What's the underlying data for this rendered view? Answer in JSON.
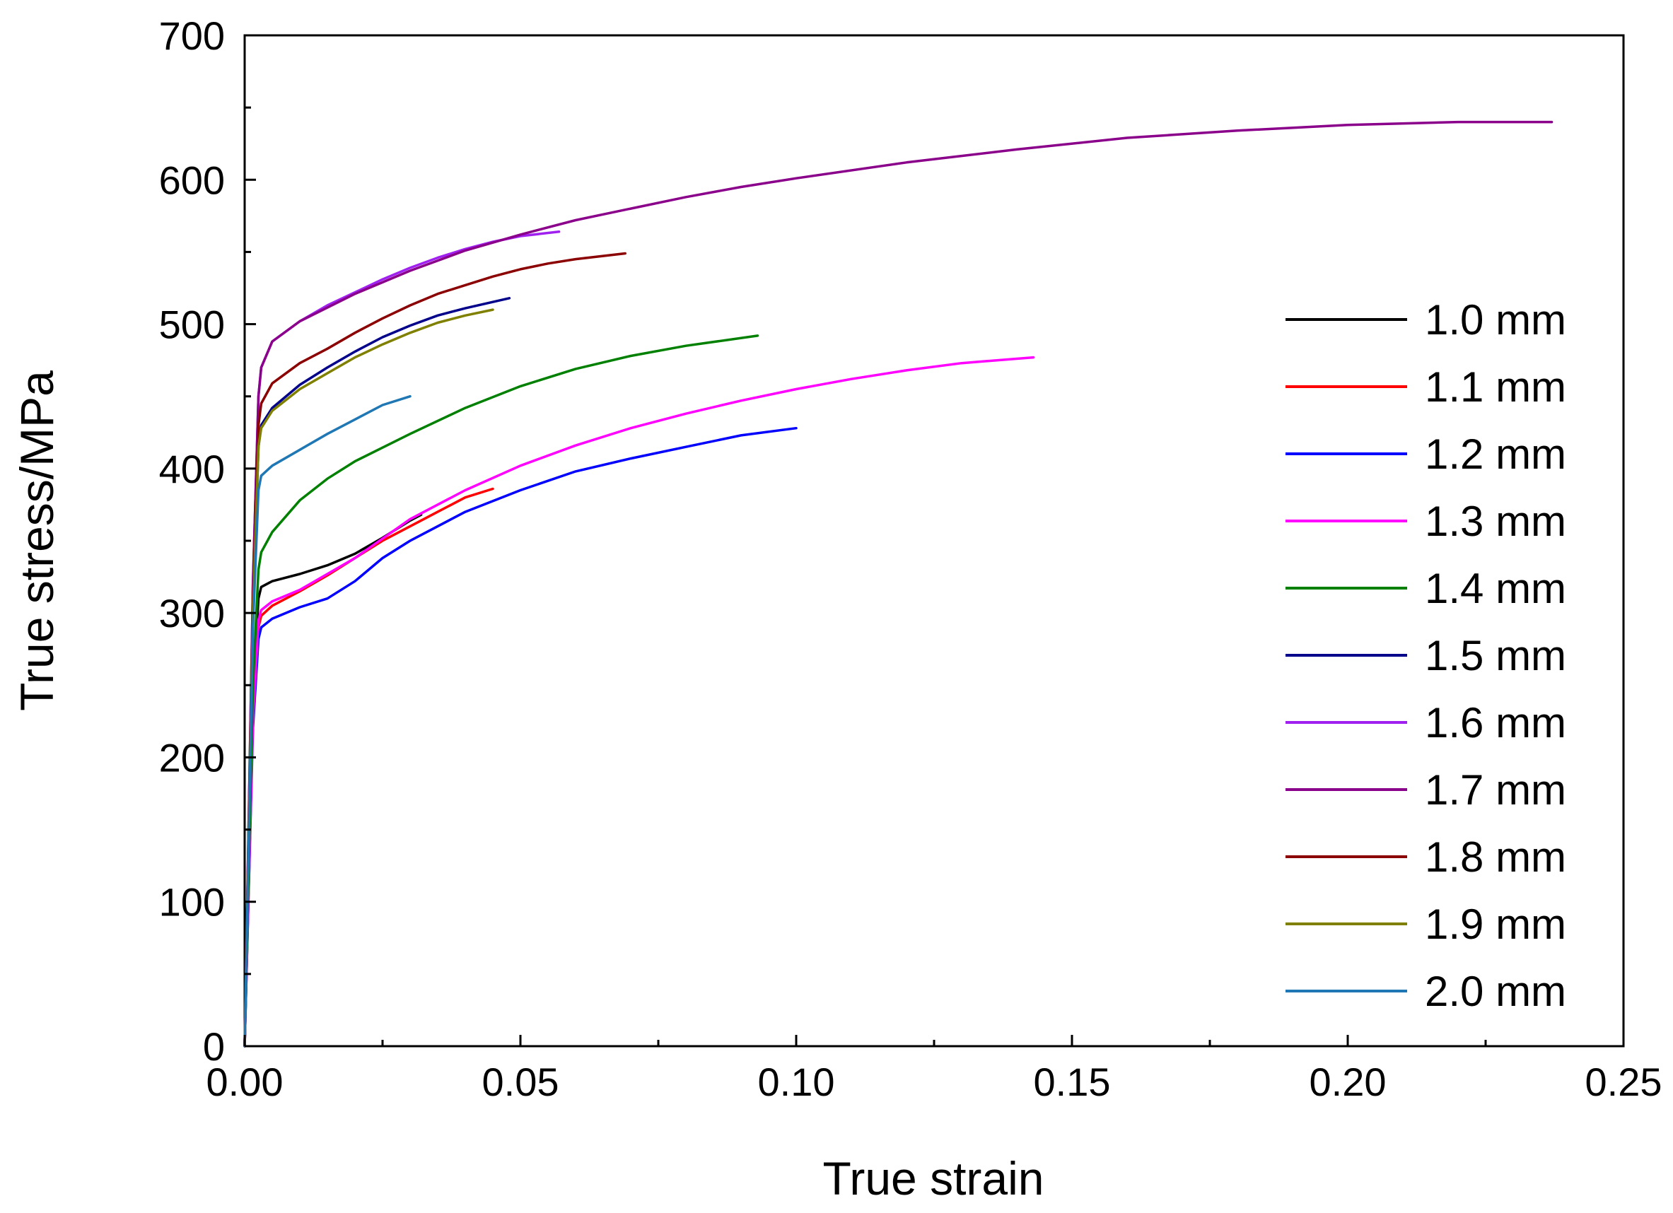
{
  "chart_data": {
    "type": "line",
    "title": "",
    "xlabel": "True strain",
    "ylabel": "True stress/MPa",
    "xlim": [
      0,
      0.25
    ],
    "ylim": [
      0,
      700
    ],
    "xticks": [
      "0.00",
      "0.05",
      "0.10",
      "0.15",
      "0.20",
      "0.25"
    ],
    "yticks": [
      "0",
      "100",
      "200",
      "300",
      "400",
      "500",
      "600",
      "700"
    ],
    "grid": false,
    "legend_position": "right",
    "series": [
      {
        "name": "1.0 mm",
        "color": "#000000",
        "x": [
          0,
          0.0015,
          0.0025,
          0.003,
          0.005,
          0.01,
          0.015,
          0.02,
          0.025,
          0.03,
          0.032
        ],
        "y": [
          0,
          240,
          310,
          318,
          322,
          327,
          333,
          341,
          352,
          364,
          368
        ]
      },
      {
        "name": "1.1 mm",
        "color": "#ff0000",
        "x": [
          0,
          0.0015,
          0.0025,
          0.003,
          0.005,
          0.01,
          0.015,
          0.02,
          0.025,
          0.03,
          0.035,
          0.04,
          0.045
        ],
        "y": [
          0,
          230,
          290,
          298,
          305,
          315,
          326,
          338,
          350,
          360,
          370,
          380,
          386
        ]
      },
      {
        "name": "1.2 mm",
        "color": "#0000ff",
        "x": [
          0,
          0.0015,
          0.0025,
          0.003,
          0.005,
          0.01,
          0.015,
          0.02,
          0.025,
          0.03,
          0.04,
          0.05,
          0.06,
          0.07,
          0.08,
          0.09,
          0.1
        ],
        "y": [
          0,
          220,
          282,
          290,
          296,
          304,
          310,
          322,
          338,
          350,
          370,
          385,
          398,
          407,
          415,
          423,
          428
        ]
      },
      {
        "name": "1.3 mm",
        "color": "#ff00ff",
        "x": [
          0,
          0.0015,
          0.0025,
          0.003,
          0.005,
          0.01,
          0.02,
          0.03,
          0.04,
          0.05,
          0.06,
          0.07,
          0.08,
          0.09,
          0.1,
          0.11,
          0.12,
          0.13,
          0.143
        ],
        "y": [
          0,
          225,
          295,
          302,
          308,
          316,
          338,
          365,
          385,
          402,
          416,
          428,
          438,
          447,
          455,
          462,
          468,
          473,
          477
        ]
      },
      {
        "name": "1.4 mm",
        "color": "#008000",
        "x": [
          0,
          0.0015,
          0.0025,
          0.003,
          0.005,
          0.01,
          0.015,
          0.02,
          0.03,
          0.04,
          0.05,
          0.06,
          0.07,
          0.08,
          0.093
        ],
        "y": [
          0,
          250,
          330,
          342,
          356,
          378,
          393,
          405,
          424,
          442,
          457,
          469,
          478,
          485,
          492
        ]
      },
      {
        "name": "1.5 mm",
        "color": "#00008b",
        "x": [
          0,
          0.0015,
          0.0025,
          0.003,
          0.005,
          0.01,
          0.015,
          0.02,
          0.025,
          0.03,
          0.035,
          0.04,
          0.048
        ],
        "y": [
          0,
          300,
          415,
          430,
          442,
          458,
          470,
          481,
          491,
          499,
          506,
          511,
          518
        ]
      },
      {
        "name": "1.6 mm",
        "color": "#a020f0",
        "x": [
          0,
          0.0015,
          0.0025,
          0.003,
          0.005,
          0.01,
          0.015,
          0.02,
          0.025,
          0.03,
          0.035,
          0.04,
          0.045,
          0.05,
          0.057
        ],
        "y": [
          0,
          320,
          450,
          470,
          488,
          502,
          513,
          522,
          531,
          539,
          546,
          552,
          557,
          561,
          564
        ]
      },
      {
        "name": "1.7 mm",
        "color": "#8b008b",
        "x": [
          0,
          0.0015,
          0.0025,
          0.003,
          0.005,
          0.01,
          0.02,
          0.03,
          0.04,
          0.05,
          0.06,
          0.07,
          0.08,
          0.09,
          0.1,
          0.12,
          0.14,
          0.16,
          0.18,
          0.2,
          0.22,
          0.237
        ],
        "y": [
          0,
          320,
          450,
          470,
          488,
          502,
          521,
          537,
          551,
          562,
          572,
          580,
          588,
          595,
          601,
          612,
          621,
          629,
          634,
          638,
          640,
          640
        ]
      },
      {
        "name": "1.8 mm",
        "color": "#8b0000",
        "x": [
          0,
          0.0015,
          0.0025,
          0.003,
          0.005,
          0.01,
          0.015,
          0.02,
          0.025,
          0.03,
          0.035,
          0.04,
          0.045,
          0.05,
          0.055,
          0.06,
          0.069
        ],
        "y": [
          0,
          310,
          430,
          445,
          459,
          473,
          483,
          494,
          504,
          513,
          521,
          527,
          533,
          538,
          542,
          545,
          549
        ]
      },
      {
        "name": "1.9 mm",
        "color": "#808000",
        "x": [
          0,
          0.0015,
          0.0025,
          0.003,
          0.005,
          0.01,
          0.015,
          0.02,
          0.025,
          0.03,
          0.035,
          0.04,
          0.045
        ],
        "y": [
          0,
          300,
          415,
          428,
          440,
          455,
          466,
          477,
          486,
          494,
          501,
          506,
          510
        ]
      },
      {
        "name": "2.0 mm",
        "color": "#1f77b4",
        "x": [
          0,
          0.0015,
          0.0025,
          0.003,
          0.005,
          0.01,
          0.015,
          0.02,
          0.025,
          0.03
        ],
        "y": [
          0,
          290,
          385,
          395,
          402,
          413,
          424,
          434,
          444,
          450
        ]
      }
    ]
  }
}
